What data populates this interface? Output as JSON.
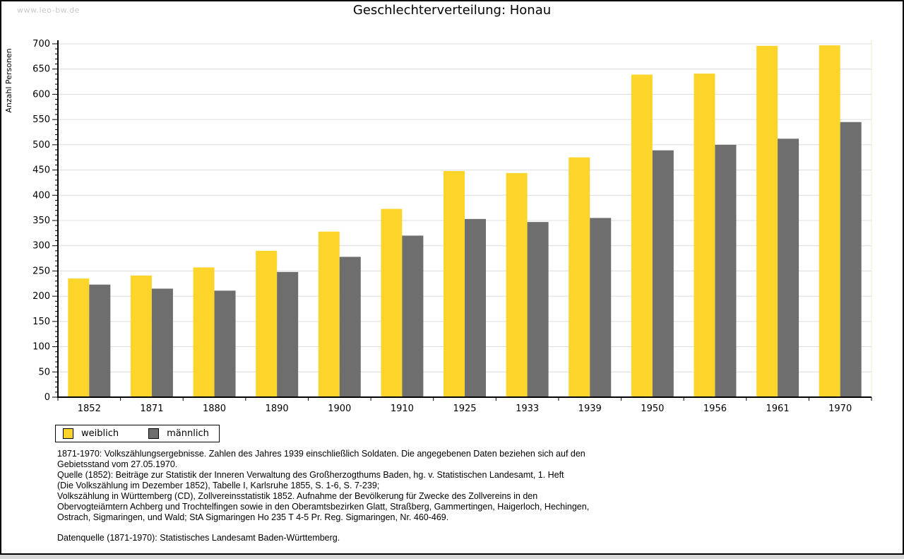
{
  "page": {
    "watermark": "www.leo-bw.de",
    "title": "Geschlechterverteilung: Honau"
  },
  "chart_data": {
    "type": "bar",
    "title": "Geschlechterverteilung: Honau",
    "xlabel": "",
    "ylabel": "Anzahl Personen",
    "ylim": [
      0,
      700
    ],
    "ytick_step": 50,
    "yminor_step": 10,
    "grid": true,
    "legend_position": "bottom-left",
    "categories": [
      "1852",
      "1871",
      "1880",
      "1890",
      "1900",
      "1910",
      "1925",
      "1933",
      "1939",
      "1950",
      "1956",
      "1961",
      "1970"
    ],
    "series": [
      {
        "name": "weiblich",
        "color": "#fcd42a",
        "values": [
          235,
          241,
          257,
          290,
          328,
          373,
          448,
          444,
          475,
          639,
          641,
          696,
          697
        ]
      },
      {
        "name": "männlich",
        "color": "#6e6e6e",
        "values": [
          223,
          215,
          211,
          248,
          278,
          320,
          353,
          347,
          355,
          489,
          500,
          512,
          545
        ]
      }
    ]
  },
  "legend": {
    "items": [
      {
        "label": "weiblich",
        "color": "#fcd42a"
      },
      {
        "label": "männlich",
        "color": "#6e6e6e"
      }
    ]
  },
  "footnotes": {
    "source_lines": [
      "1871-1970: Volkszählungsergebnisse. Zahlen des Jahres 1939 einschließlich Soldaten. Die angegebenen Daten beziehen sich auf den",
      "Gebietsstand vom 27.05.1970.",
      "Quelle (1852): Beiträge zur Statistik der Inneren Verwaltung des Großherzogthums Baden, hg. v. Statistischen Landesamt, 1. Heft",
      "(Die Volkszählung im Dezember 1852), Tabelle I, Karlsruhe 1855, S. 1-6, S. 7-239;",
      "Volkszählung in Württemberg (CD), Zollvereinsstatistik 1852. Aufnahme der Bevölkerung für Zwecke des Zollvereins in den",
      "Obervogteiämtern Achberg und Trochtelfingen sowie in den Oberamtsbezirken Glatt, Straßberg, Gammertingen, Haigerloch, Hechingen,",
      "Ostrach, Sigmaringen, und Wald; StA Sigmaringen Ho 235 T 4-5 Pr. Reg. Sigmaringen, Nr. 460-469."
    ],
    "datasource": "Datenquelle (1871-1970): Statistisches Landesamt Baden-Württemberg."
  },
  "colors": {
    "grid": "#dcdcdc",
    "axis": "#000000",
    "watermark": "#c9c9c9",
    "plot_right_edge": "#f3edc2"
  }
}
